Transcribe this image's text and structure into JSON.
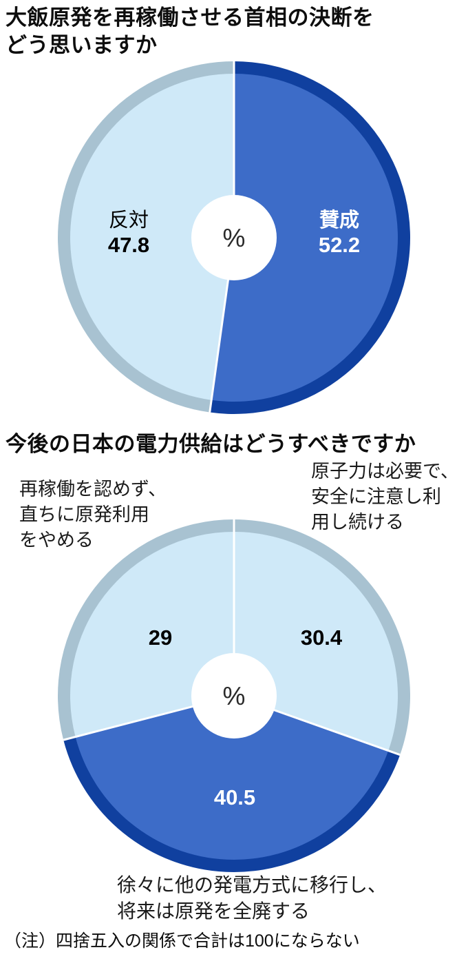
{
  "chart_data": [
    {
      "type": "pie",
      "title": "大飯原発を再稼働させる首相の決断を\nどう思いますか",
      "center_label": "%",
      "legend_position": "inside",
      "segments": [
        {
          "label": "賛成",
          "value": 52.2,
          "color": "#3d6cc8",
          "ring_color": "#10409f",
          "text_color": "#ffffff"
        },
        {
          "label": "反対",
          "value": 47.8,
          "color": "#cfe9f8",
          "ring_color": "#a8c2d1",
          "text_color": "#000000"
        }
      ]
    },
    {
      "type": "pie",
      "title": "今後の日本の電力供給はどうすべきですか",
      "center_label": "%",
      "legend_position": "outside",
      "segments": [
        {
          "label": "原子力は必要で、安全に注意し利用し続ける",
          "value": 30.4,
          "color": "#cfe9f8",
          "ring_color": "#a8c2d1",
          "text_color": "#000000"
        },
        {
          "label": "徐々に他の発電方式に移行し、将来は原発を全廃する",
          "value": 40.5,
          "color": "#3d6cc8",
          "ring_color": "#10409f",
          "text_color": "#ffffff"
        },
        {
          "label": "再稼働を認めず、直ちに原発利用をやめる",
          "value": 29,
          "color": "#cfe9f8",
          "ring_color": "#a8c2d1",
          "text_color": "#000000"
        }
      ]
    }
  ],
  "annotations": {
    "left": "再稼働を認めず、\n直ちに原発利用\nをやめる",
    "right": "原子力は必要で、\n安全に注意し利\n用し続ける",
    "bottom": "徐々に他の発電方式に移行し、\n将来は原発を全廃する"
  },
  "footnote": "（注）四捨五入の関係で合計は100にならない"
}
